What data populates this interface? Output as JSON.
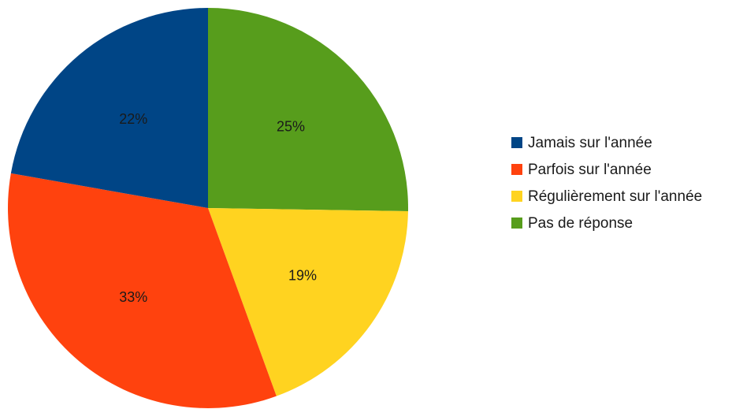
{
  "chart_data": {
    "type": "pie",
    "title": "",
    "start_angle_deg": 0,
    "direction": "clockwise",
    "slices": [
      {
        "label": "Pas de réponse",
        "value": 25,
        "value_label": "25%",
        "color": "#579d1c"
      },
      {
        "label": "Régulièrement sur l'année",
        "value": 19,
        "value_label": "19%",
        "color": "#ffd320"
      },
      {
        "label": "Parfois sur l'année",
        "value": 33,
        "value_label": "33%",
        "color": "#ff420e"
      },
      {
        "label": "Jamais sur l'année",
        "value": 22,
        "value_label": "22%",
        "color": "#004586"
      }
    ],
    "legend": {
      "position": "right",
      "items": [
        {
          "label": "Jamais sur l'année",
          "color": "#004586"
        },
        {
          "label": "Parfois sur l'année",
          "color": "#ff420e"
        },
        {
          "label": "Régulièrement sur l'année",
          "color": "#ffd320"
        },
        {
          "label": "Pas de réponse",
          "color": "#579d1c"
        }
      ]
    }
  }
}
